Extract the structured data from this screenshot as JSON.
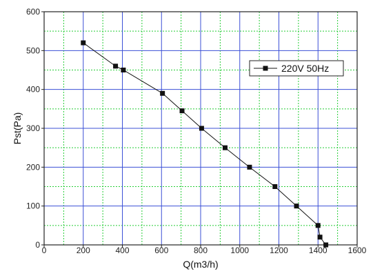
{
  "chart_data": {
    "type": "line",
    "title": "",
    "xlabel": "Q(m3/h)",
    "ylabel": "Pst(Pa)",
    "xlim": [
      0,
      1600
    ],
    "ylim": [
      0,
      600
    ],
    "x_ticks": [
      0,
      200,
      400,
      600,
      800,
      1000,
      1200,
      1400,
      1600
    ],
    "y_ticks": [
      0,
      100,
      200,
      300,
      400,
      500,
      600
    ],
    "x_minor_step": 100,
    "y_minor_step": 50,
    "grid": true,
    "legend_position": "top-right",
    "colors": {
      "major_grid": "#3a4fd6",
      "minor_grid": "#22cc33",
      "series": "#111111",
      "frame": "#222222"
    },
    "series": [
      {
        "name": "220V 50Hz",
        "marker": "square",
        "x": [
          200,
          365,
          405,
          605,
          705,
          805,
          925,
          1050,
          1180,
          1290,
          1400,
          1410,
          1440
        ],
        "y": [
          520,
          460,
          450,
          390,
          345,
          300,
          250,
          200,
          150,
          100,
          50,
          20,
          0
        ]
      }
    ]
  }
}
